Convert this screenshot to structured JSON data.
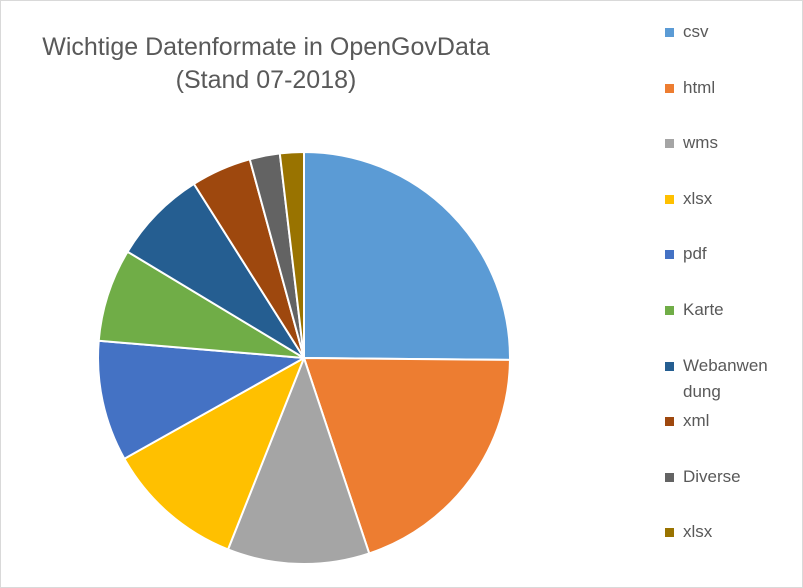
{
  "chart_data": {
    "type": "pie",
    "title": "Wichtige Datenformate in OpenGovData",
    "subtitle": "(Stand 07-2018)",
    "legend_position": "right",
    "categories": [
      "csv",
      "html",
      "wms",
      "xlsx",
      "pdf",
      "Karte",
      "Webanwendung",
      "xml",
      "Diverse",
      "xlsx"
    ],
    "legend_labels": [
      [
        "csv"
      ],
      [
        "html"
      ],
      [
        "wms"
      ],
      [
        "xlsx"
      ],
      [
        "pdf"
      ],
      [
        "Karte"
      ],
      [
        "Webanwen",
        "dung"
      ],
      [
        "xml"
      ],
      [
        "Diverse"
      ],
      [
        "xlsx"
      ]
    ],
    "values": [
      25.5,
      20.0,
      11.3,
      11.0,
      9.6,
      7.4,
      7.5,
      4.8,
      2.4,
      1.9
    ],
    "colors": [
      "#5B9BD5",
      "#ED7D31",
      "#A5A5A5",
      "#FFC000",
      "#4472C4",
      "#70AD47",
      "#255E91",
      "#9E480E",
      "#636363",
      "#997300"
    ],
    "slice_border_color": "#ffffff"
  }
}
